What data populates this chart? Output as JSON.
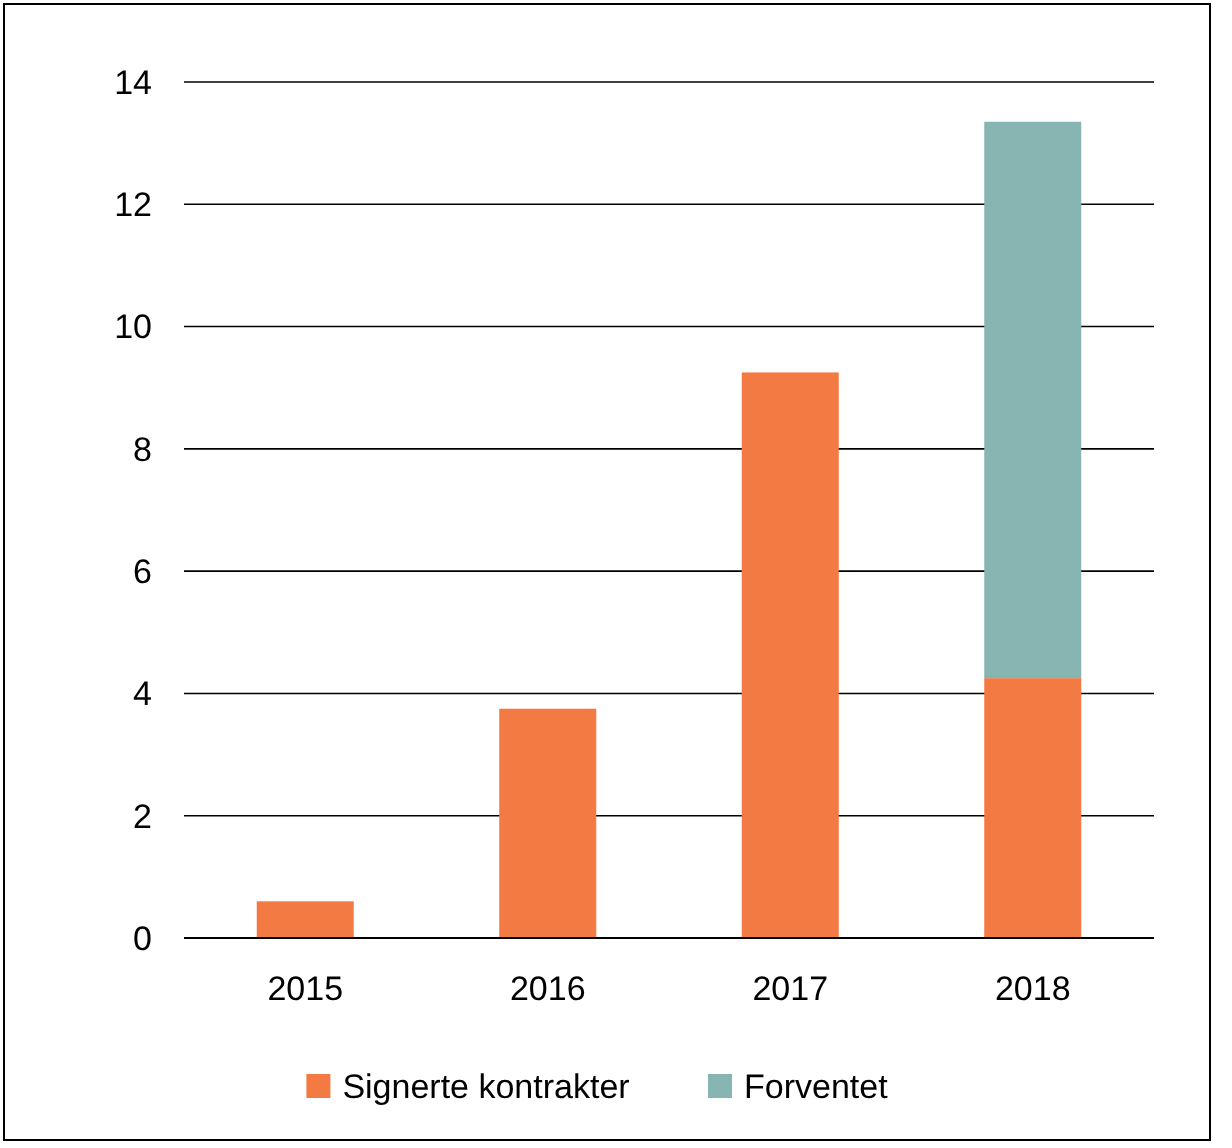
{
  "chart_data": {
    "type": "bar",
    "categories": [
      "2015",
      "2016",
      "2017",
      "2018"
    ],
    "stacked": true,
    "series": [
      {
        "name": "Signerte kontrakter",
        "color": "#f47a44",
        "values": [
          0.6,
          3.75,
          9.25,
          4.25
        ]
      },
      {
        "name": "Forventet",
        "color": "#86b5b2",
        "values": [
          null,
          null,
          null,
          9.1
        ]
      }
    ],
    "ylim": [
      0,
      14
    ],
    "yticks": [
      0,
      2,
      4,
      6,
      8,
      10,
      12,
      14
    ],
    "grid": "y",
    "legend": "bottom"
  }
}
